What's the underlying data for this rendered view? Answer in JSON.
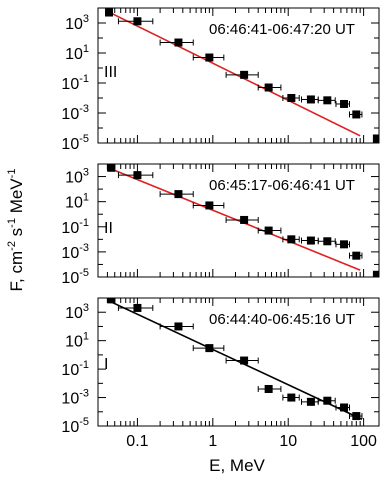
{
  "chart_data": {
    "type": "scatter",
    "xlabel": "E, MeV",
    "ylabel_parts": [
      "F, cm",
      "-2",
      " s",
      "-1",
      " MeV",
      "-1"
    ],
    "x_scale": "log",
    "y_scale": "log",
    "xlim": [
      0.03,
      160
    ],
    "ylim": [
      1e-05,
      10000
    ],
    "x_ticks": [
      {
        "value": 0.1,
        "label": "0.1"
      },
      {
        "value": 1,
        "label": "1"
      },
      {
        "value": 10,
        "label": "10"
      },
      {
        "value": 100,
        "label": "100"
      }
    ],
    "y_ticks": [
      {
        "value": 1000,
        "base": "10",
        "exp": "3"
      },
      {
        "value": 10,
        "base": "10",
        "exp": "1"
      },
      {
        "value": 0.1,
        "base": "10",
        "exp": "-1"
      },
      {
        "value": 0.001,
        "base": "10",
        "exp": "-3"
      },
      {
        "value": 1e-05,
        "base": "10",
        "exp": "-5"
      }
    ],
    "panels": [
      {
        "label": "III",
        "time": "06:46:41-06:47:20 UT",
        "fit_color": "#e02020",
        "fit": {
          "x": [
            0.04,
            90
          ],
          "y": [
            6000,
            3e-05
          ]
        },
        "points": [
          {
            "x": 0.042,
            "y": 5000,
            "xerr": [
              0.04,
              0.046
            ]
          },
          {
            "x": 0.1,
            "y": 1300,
            "xerr": [
              0.056,
              0.16
            ]
          },
          {
            "x": 0.35,
            "y": 50,
            "xerr": [
              0.2,
              0.55
            ]
          },
          {
            "x": 0.9,
            "y": 5,
            "xerr": [
              0.55,
              1.4
            ]
          },
          {
            "x": 2.6,
            "y": 0.35,
            "xerr": [
              1.5,
              4
            ]
          },
          {
            "x": 5.5,
            "y": 0.05,
            "xerr": [
              4,
              8
            ]
          },
          {
            "x": 11,
            "y": 0.01,
            "xerr": [
              8.5,
              14
            ]
          },
          {
            "x": 20,
            "y": 0.008,
            "xerr": [
              15,
              25
            ]
          },
          {
            "x": 33,
            "y": 0.007,
            "xerr": [
              25,
              42
            ]
          },
          {
            "x": 55,
            "y": 0.004,
            "xerr": [
              43,
              65
            ]
          },
          {
            "x": 80,
            "y": 0.0008,
            "xerr": [
              65,
              95
            ]
          },
          {
            "x": 150,
            "y": 2e-05,
            "xerr": [
              150,
              150
            ]
          }
        ]
      },
      {
        "label": "II",
        "time": "06:45:17-06:46:41 UT",
        "fit_color": "#e02020",
        "fit": {
          "x": [
            0.045,
            90
          ],
          "y": [
            4000,
            3.5e-05
          ]
        },
        "points": [
          {
            "x": 0.045,
            "y": 5000,
            "xerr": [
              0.04,
              0.05
            ]
          },
          {
            "x": 0.1,
            "y": 1300,
            "xerr": [
              0.056,
              0.16
            ]
          },
          {
            "x": 0.35,
            "y": 40,
            "xerr": [
              0.2,
              0.55
            ]
          },
          {
            "x": 0.9,
            "y": 5,
            "xerr": [
              0.55,
              1.4
            ]
          },
          {
            "x": 2.6,
            "y": 0.35,
            "xerr": [
              1.5,
              4
            ]
          },
          {
            "x": 5.5,
            "y": 0.05,
            "xerr": [
              4,
              8
            ]
          },
          {
            "x": 11,
            "y": 0.01,
            "xerr": [
              8.5,
              14
            ]
          },
          {
            "x": 20,
            "y": 0.008,
            "xerr": [
              15,
              25
            ]
          },
          {
            "x": 33,
            "y": 0.007,
            "xerr": [
              25,
              42
            ]
          },
          {
            "x": 55,
            "y": 0.004,
            "xerr": [
              43,
              65
            ]
          },
          {
            "x": 80,
            "y": 0.0005,
            "xerr": [
              65,
              95
            ]
          },
          {
            "x": 150,
            "y": 1.5e-05,
            "xerr": [
              150,
              150
            ]
          }
        ]
      },
      {
        "label": "I",
        "time": "06:44:40-06:45:16 UT",
        "fit_color": "#000000",
        "fit": {
          "x": [
            0.04,
            95
          ],
          "y": [
            7000,
            3e-05
          ]
        },
        "points": [
          {
            "x": 0.045,
            "y": 8000,
            "xerr": [
              0.04,
              0.05
            ]
          },
          {
            "x": 0.1,
            "y": 2000,
            "xerr": [
              0.056,
              0.16
            ]
          },
          {
            "x": 0.35,
            "y": 100,
            "xerr": [
              0.2,
              0.55
            ]
          },
          {
            "x": 0.9,
            "y": 3,
            "xerr": [
              0.55,
              1.4
            ]
          },
          {
            "x": 2.6,
            "y": 0.4,
            "xerr": [
              1.5,
              4
            ]
          },
          {
            "x": 5.5,
            "y": 0.004,
            "xerr": [
              4,
              8
            ]
          },
          {
            "x": 11,
            "y": 0.001,
            "xerr": [
              8.5,
              14
            ]
          },
          {
            "x": 20,
            "y": 0.0005,
            "xerr": [
              15,
              25
            ]
          },
          {
            "x": 33,
            "y": 0.0006,
            "xerr": [
              25,
              42
            ]
          },
          {
            "x": 55,
            "y": 0.0002,
            "xerr": [
              43,
              65
            ]
          },
          {
            "x": 80,
            "y": 5e-05,
            "xerr": [
              65,
              95
            ]
          }
        ]
      }
    ]
  }
}
